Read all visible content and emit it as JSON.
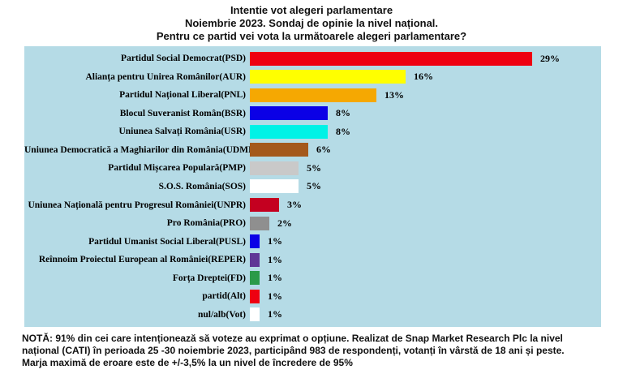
{
  "title": {
    "line1": "Intentie vot alegeri parlamentare",
    "line2": "Noiembrie 2023. Sondaj de opinie la nivel național.",
    "line3": "Pentru ce partid vei vota la următoarele alegeri parlamentare?"
  },
  "chart_data": {
    "type": "bar",
    "orientation": "horizontal",
    "title": "Intentie vot alegeri parlamentare",
    "subtitle": "Noiembrie 2023. Sondaj de opinie la nivel național. Pentru ce partid vei vota la următoarele alegeri parlamentare?",
    "xlim": [
      0,
      30
    ],
    "grid": false,
    "legend": false,
    "panel_background": "#b5dbe6",
    "categories": [
      "Partidul Social Democrat(PSD)",
      "Alianța pentru Unirea Românilor(AUR)",
      "Partidul Național Liberal(PNL)",
      "Blocul Suveranist Român(BSR)",
      "Uniunea Salvați România(USR)",
      "Uniunea Democratică a Maghiarilor din România(UDMR)",
      "Partidul Mișcarea Populară(PMP)",
      "S.O.S. România(SOS)",
      "Uniunea Națională pentru Progresul României(UNPR)",
      "Pro România(PRO)",
      "Partidul Umanist Social Liberal(PUSL)",
      "Reînnoim Proiectul European al României(REPER)",
      "Forța Dreptei(FD)",
      "partid(Alt)",
      "nul/alb(Vot)"
    ],
    "values": [
      29,
      16,
      13,
      8,
      8,
      6,
      5,
      5,
      3,
      2,
      1,
      1,
      1,
      1,
      1
    ],
    "value_labels": [
      "29%",
      "16%",
      "13%",
      "8%",
      "8%",
      "6%",
      "5%",
      "5%",
      "3%",
      "2%",
      "1%",
      "1%",
      "1%",
      "1%",
      "1%"
    ],
    "bar_colors": [
      "#ee0011",
      "#ffff00",
      "#f5a802",
      "#0b00e6",
      "#00f2e6",
      "#a4591c",
      "#c9c9c9",
      "#ffffff",
      "#c40020",
      "#8f8f8f",
      "#0b00e6",
      "#5f3696",
      "#2a9a48",
      "#ee0011",
      "#ffffff"
    ]
  },
  "note": {
    "lines": [
      "NOTĂ: 91% din cei care intenționează să voteze au exprimat o opțiune. Realizat de Snap Market Research Plc la nivel",
      "național (CATI) în perioada 25 -30 noiembrie 2023, participând 983 de respondenți, votanți în vârstă de 18 ani și peste.",
      "Marja maximă de eroare este de +/-3,5% la un nivel de încredere de 95%"
    ]
  }
}
